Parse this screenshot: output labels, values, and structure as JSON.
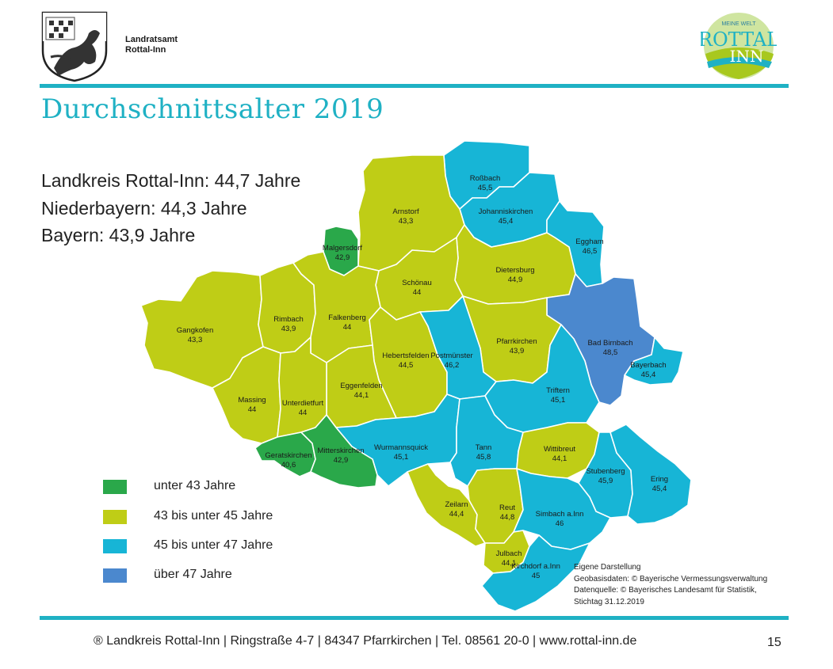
{
  "header": {
    "org_line1": "Landratsamt",
    "org_line2": "Rottal-Inn",
    "logo_top": "MEINE WELT",
    "logo_word1": "ROTTAL",
    "logo_word2": "INN"
  },
  "title": "Durchschnittsalter 2019",
  "stats": [
    "Landkreis Rottal-Inn: 44,7 Jahre",
    "Niederbayern: 44,3 Jahre",
    "Bayern: 43,9 Jahre"
  ],
  "colors": {
    "green": "#2aa84a",
    "yellowgreen": "#bfcd16",
    "cyan": "#17b5d6",
    "blue": "#4b88ce",
    "accent": "#1fb1c4"
  },
  "legend": [
    {
      "label": "unter 43 Jahre",
      "color": "#2aa84a"
    },
    {
      "label": "43 bis unter 45 Jahre",
      "color": "#bfcd16"
    },
    {
      "label": "45 bis unter 47 Jahre",
      "color": "#17b5d6"
    },
    {
      "label": "über 47 Jahre",
      "color": "#4b88ce"
    }
  ],
  "regions": [
    {
      "name": "Roßbach",
      "value": "45,5",
      "category": "cyan"
    },
    {
      "name": "Johanniskirchen",
      "value": "45,4",
      "category": "cyan"
    },
    {
      "name": "Arnstorf",
      "value": "43,3",
      "category": "yellowgreen"
    },
    {
      "name": "Eggham",
      "value": "46,5",
      "category": "cyan"
    },
    {
      "name": "Malgersdorf",
      "value": "42,9",
      "category": "green"
    },
    {
      "name": "Dietersburg",
      "value": "44,9",
      "category": "yellowgreen"
    },
    {
      "name": "Schönau",
      "value": "44",
      "category": "yellowgreen"
    },
    {
      "name": "Gangkofen",
      "value": "43,3",
      "category": "yellowgreen"
    },
    {
      "name": "Rimbach",
      "value": "43,9",
      "category": "yellowgreen"
    },
    {
      "name": "Falkenberg",
      "value": "44",
      "category": "yellowgreen"
    },
    {
      "name": "Bad Birnbach",
      "value": "48,5",
      "category": "blue"
    },
    {
      "name": "Pfarrkirchen",
      "value": "43,9",
      "category": "yellowgreen"
    },
    {
      "name": "Hebertsfelden",
      "value": "44,5",
      "category": "yellowgreen"
    },
    {
      "name": "Postmünster",
      "value": "46,2",
      "category": "cyan"
    },
    {
      "name": "Bayerbach",
      "value": "45,4",
      "category": "cyan"
    },
    {
      "name": "Eggenfelden",
      "value": "44,1",
      "category": "yellowgreen"
    },
    {
      "name": "Triftern",
      "value": "45,1",
      "category": "cyan"
    },
    {
      "name": "Massing",
      "value": "44",
      "category": "yellowgreen"
    },
    {
      "name": "Unterdietfurt",
      "value": "44",
      "category": "yellowgreen"
    },
    {
      "name": "Wurmannsquick",
      "value": "45,1",
      "category": "cyan"
    },
    {
      "name": "Tann",
      "value": "45,8",
      "category": "cyan"
    },
    {
      "name": "Wittibreut",
      "value": "44,1",
      "category": "yellowgreen"
    },
    {
      "name": "Geratskirchen",
      "value": "40,6",
      "category": "green"
    },
    {
      "name": "Mitterskirchen",
      "value": "42,9",
      "category": "green"
    },
    {
      "name": "Stubenberg",
      "value": "45,9",
      "category": "cyan"
    },
    {
      "name": "Ering",
      "value": "45,4",
      "category": "cyan"
    },
    {
      "name": "Zeilarn",
      "value": "44,4",
      "category": "yellowgreen"
    },
    {
      "name": "Reut",
      "value": "44,8",
      "category": "yellowgreen"
    },
    {
      "name": "Simbach a.Inn",
      "value": "46",
      "category": "cyan"
    },
    {
      "name": "Julbach",
      "value": "44,1",
      "category": "yellowgreen"
    },
    {
      "name": "Kirchdorf a.Inn",
      "value": "45",
      "category": "cyan"
    }
  ],
  "credits": [
    "Eigene Darstellung",
    "Geobasisdaten: © Bayerische Vermessungsverwaltung",
    "Datenquelle: © Bayerisches Landesamt für Statistik,",
    "Stichtag 31.12.2019"
  ],
  "footer": {
    "text": "® Landkreis Rottal-Inn | Ringstraße 4-7 | 84347 Pfarrkirchen  | Tel. 08561 20-0 | www.rottal-inn.de",
    "page": "15"
  }
}
